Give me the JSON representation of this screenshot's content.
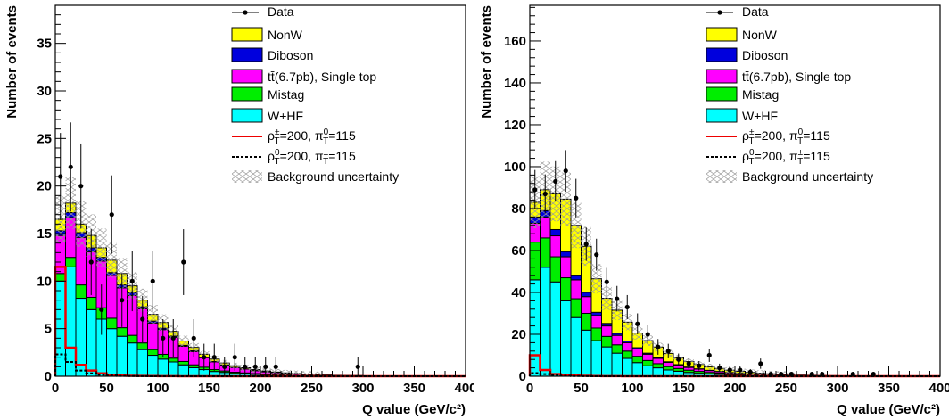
{
  "chart_data": [
    {
      "type": "stacked-histogram",
      "xlabel": "Q value (GeV/c²)",
      "ylabel": "Number of events",
      "xlim": [
        0,
        400
      ],
      "ylim": [
        0,
        39
      ],
      "x_ticks": [
        "0",
        "50",
        "100",
        "150",
        "200",
        "250",
        "300",
        "350",
        "400"
      ],
      "y_ticks": [
        "0",
        "5",
        "10",
        "15",
        "20",
        "25",
        "30",
        "35"
      ],
      "y_tick_values": [
        0,
        5,
        10,
        15,
        20,
        25,
        30,
        35
      ],
      "bin_width": 10,
      "legend_position": "top-right",
      "series": [
        {
          "name": "W+HF",
          "color": "#00ffff",
          "values": [
            10,
            11.5,
            8.2,
            7.0,
            6.0,
            5.0,
            4.2,
            3.5,
            2.8,
            2.2,
            1.8,
            1.5,
            1.2,
            0.9,
            0.7,
            0.5,
            0.4,
            0.3,
            0.25,
            0.2,
            0.15,
            0.12,
            0.1,
            0.08,
            0.06,
            0.05,
            0.04,
            0.03,
            0.02,
            0.02,
            0.02,
            0.01,
            0.01,
            0.01,
            0.01,
            0.01,
            0.01,
            0.01,
            0.01,
            0.01
          ]
        },
        {
          "name": "Mistag",
          "color": "#00ee00",
          "values": [
            0.8,
            1.0,
            1.4,
            1.3,
            1.2,
            1.1,
            0.9,
            0.8,
            0.7,
            0.6,
            0.5,
            0.4,
            0.35,
            0.3,
            0.25,
            0.2,
            0.15,
            0.12,
            0.1,
            0.08,
            0.06,
            0.05,
            0.04,
            0.03,
            0.02,
            0.02,
            0.01,
            0.01,
            0.01,
            0.01,
            0.01,
            0.01,
            0,
            0,
            0,
            0,
            0,
            0,
            0,
            0
          ]
        },
        {
          "name": "tt̄(6.7pb), Single top",
          "color": "#ff00ff",
          "values": [
            4.0,
            4.2,
            5.0,
            4.8,
            4.9,
            4.5,
            4.2,
            4.2,
            3.6,
            2.8,
            2.6,
            2.2,
            1.6,
            1.4,
            1.0,
            0.8,
            0.6,
            0.5,
            0.4,
            0.3,
            0.25,
            0.2,
            0.15,
            0.12,
            0.1,
            0.08,
            0.06,
            0.05,
            0.04,
            0.03,
            0.02,
            0.02,
            0.01,
            0.01,
            0.01,
            0.01,
            0,
            0,
            0,
            0
          ]
        },
        {
          "name": "Diboson",
          "color": "#0000dd",
          "values": [
            0.5,
            0.5,
            0.5,
            0.4,
            0.4,
            0.3,
            0.3,
            0.3,
            0.2,
            0.2,
            0.15,
            0.12,
            0.1,
            0.08,
            0.06,
            0.05,
            0.04,
            0.03,
            0.02,
            0.02,
            0.01,
            0.01,
            0.01,
            0.01,
            0,
            0,
            0,
            0,
            0,
            0,
            0,
            0,
            0,
            0,
            0,
            0,
            0,
            0,
            0,
            0
          ]
        },
        {
          "name": "NonW",
          "color": "#ffff00",
          "values": [
            1.2,
            1.0,
            0.9,
            1.3,
            1.0,
            1.3,
            1.2,
            0.7,
            0.7,
            0.7,
            0.6,
            0.5,
            0.45,
            0.35,
            0.3,
            0.25,
            0.2,
            0.15,
            0.12,
            0.1,
            0.08,
            0.06,
            0.05,
            0.04,
            0.03,
            0.02,
            0.02,
            0.01,
            0.01,
            0.01,
            0,
            0,
            0,
            0,
            0,
            0,
            0,
            0,
            0,
            0
          ]
        }
      ],
      "data": {
        "name": "Data",
        "x": [
          5,
          15,
          25,
          35,
          45,
          55,
          65,
          75,
          85,
          95,
          105,
          115,
          125,
          135,
          145,
          155,
          165,
          175,
          185,
          195,
          205,
          215,
          295
        ],
        "y": [
          21,
          22,
          20,
          12,
          7,
          17,
          8,
          10,
          6,
          10,
          4,
          4,
          12,
          4,
          2,
          2,
          1,
          2,
          1,
          1,
          1,
          1,
          1
        ]
      },
      "signals": [
        {
          "name": "ρ±T=200, π0T=115",
          "style": "solid",
          "color": "#ee0000",
          "values": [
            11.5,
            3.0,
            1.2,
            0.6,
            0.3,
            0.15,
            0.08,
            0.05,
            0.03,
            0.02,
            0.01,
            0.01,
            0,
            0,
            0,
            0,
            0,
            0,
            0,
            0,
            0,
            0,
            0,
            0,
            0,
            0,
            0,
            0,
            0,
            0,
            0,
            0,
            0,
            0,
            0,
            0,
            0,
            0,
            0,
            0
          ]
        },
        {
          "name": "ρ0T=200, π±T=115",
          "style": "dotted",
          "color": "#000000",
          "values": [
            2.3,
            1.5,
            0.6,
            0.3,
            0.15,
            0.08,
            0.04,
            0.02,
            0.01,
            0,
            0,
            0,
            0,
            0,
            0,
            0,
            0,
            0,
            0,
            0,
            0,
            0,
            0,
            0,
            0,
            0,
            0,
            0,
            0,
            0,
            0,
            0,
            0,
            0,
            0,
            0,
            0,
            0,
            0,
            0
          ]
        }
      ],
      "uncertainty_label": "Background uncertainty"
    },
    {
      "type": "stacked-histogram",
      "xlabel": "Q value (GeV/c²)",
      "ylabel": "Number of events",
      "xlim": [
        0,
        400
      ],
      "ylim": [
        0,
        177
      ],
      "x_ticks": [
        "0",
        "50",
        "100",
        "150",
        "200",
        "250",
        "300",
        "350",
        "400"
      ],
      "y_ticks": [
        "0",
        "20",
        "40",
        "60",
        "80",
        "100",
        "120",
        "140",
        "160"
      ],
      "y_tick_values": [
        0,
        20,
        40,
        60,
        80,
        100,
        120,
        140,
        160
      ],
      "bin_width": 10,
      "legend_position": "top-right",
      "series": [
        {
          "name": "W+HF",
          "color": "#00ffff",
          "values": [
            46,
            52,
            45,
            36,
            28,
            22,
            17,
            14,
            11,
            8.5,
            6.5,
            5.0,
            4.0,
            3.0,
            2.4,
            1.8,
            1.4,
            1.1,
            0.9,
            0.7,
            0.55,
            0.45,
            0.35,
            0.28,
            0.22,
            0.18,
            0.14,
            0.11,
            0.09,
            0.07,
            0.06,
            0.05,
            0.04,
            0.03,
            0.03,
            0.02,
            0.02,
            0.02,
            0.01,
            0.01
          ]
        },
        {
          "name": "Mistag",
          "color": "#00ee00",
          "values": [
            18,
            14,
            12,
            11,
            9,
            8,
            6,
            5,
            4,
            3.5,
            3.0,
            2.5,
            2.0,
            1.6,
            1.3,
            1.1,
            0.9,
            0.7,
            0.6,
            0.5,
            0.4,
            0.3,
            0.25,
            0.2,
            0.15,
            0.12,
            0.1,
            0.08,
            0.06,
            0.05,
            0.04,
            0.03,
            0.03,
            0.02,
            0.02,
            0.01,
            0.01,
            0.01,
            0.01,
            0.01
          ]
        },
        {
          "name": "tt̄(6.7pb), Single top",
          "color": "#ff00ff",
          "values": [
            9,
            10,
            10,
            10,
            9,
            8,
            6,
            5,
            4.5,
            4,
            3.5,
            3.0,
            2.5,
            2.0,
            1.6,
            1.3,
            1.1,
            0.9,
            0.7,
            0.5,
            0.4,
            0.3,
            0.25,
            0.2,
            0.15,
            0.12,
            0.1,
            0.08,
            0.06,
            0.05,
            0.04,
            0.03,
            0.02,
            0.02,
            0.01,
            0.01,
            0.01,
            0.01,
            0,
            0
          ]
        },
        {
          "name": "Diboson",
          "color": "#0000dd",
          "values": [
            3,
            3,
            3,
            2.5,
            2,
            2,
            1.5,
            1.2,
            1.0,
            0.8,
            0.6,
            0.5,
            0.4,
            0.3,
            0.25,
            0.2,
            0.15,
            0.12,
            0.1,
            0.08,
            0.06,
            0.05,
            0.04,
            0.03,
            0.02,
            0.02,
            0.01,
            0.01,
            0.01,
            0.01,
            0,
            0,
            0,
            0,
            0,
            0,
            0,
            0,
            0,
            0
          ]
        },
        {
          "name": "NonW",
          "color": "#ffff00",
          "values": [
            7,
            10,
            17,
            25,
            24,
            22,
            16,
            12,
            11,
            9,
            7,
            6,
            5,
            4,
            3.2,
            2.6,
            2.1,
            1.7,
            1.4,
            1.1,
            0.9,
            0.7,
            0.55,
            0.45,
            0.35,
            0.28,
            0.22,
            0.18,
            0.14,
            0.11,
            0.09,
            0.07,
            0.05,
            0.04,
            0.03,
            0.03,
            0.02,
            0.02,
            0.01,
            0.01
          ]
        }
      ],
      "data": {
        "name": "Data",
        "x": [
          5,
          15,
          25,
          35,
          45,
          55,
          65,
          75,
          85,
          95,
          105,
          115,
          125,
          135,
          145,
          155,
          165,
          175,
          185,
          195,
          205,
          215,
          225,
          235,
          245,
          255,
          265,
          275,
          285,
          295,
          305,
          315,
          325,
          335,
          345,
          355,
          365,
          375,
          385,
          395
        ],
        "y": [
          89,
          87,
          93,
          98,
          85,
          63,
          58,
          45,
          37,
          33,
          25,
          20,
          14,
          12,
          8,
          6,
          5,
          10,
          4,
          3,
          3,
          2,
          6,
          1,
          1,
          1,
          0,
          1,
          1,
          0,
          0,
          1,
          0,
          1,
          0,
          0,
          0,
          0,
          0,
          0
        ]
      },
      "signals": [
        {
          "name": "ρ±T=200, π0T=115",
          "style": "solid",
          "color": "#ee0000",
          "values": [
            10,
            3,
            1.0,
            0.5,
            0.3,
            0.2,
            0.1,
            0.05,
            0.03,
            0.02,
            0.01,
            0,
            0,
            0,
            0,
            0,
            0,
            0,
            0,
            0,
            0,
            0,
            0,
            0,
            0,
            0,
            0,
            0,
            0,
            0,
            0,
            0,
            0,
            0,
            0,
            0,
            0,
            0,
            0,
            0
          ]
        },
        {
          "name": "ρ0T=200, π±T=115",
          "style": "dotted",
          "color": "#000000",
          "values": [
            1.5,
            1.0,
            0.5,
            0.2,
            0.1,
            0.05,
            0.02,
            0.01,
            0,
            0,
            0,
            0,
            0,
            0,
            0,
            0,
            0,
            0,
            0,
            0,
            0,
            0,
            0,
            0,
            0,
            0,
            0,
            0,
            0,
            0,
            0,
            0,
            0,
            0,
            0,
            0,
            0,
            0,
            0,
            0
          ]
        }
      ],
      "uncertainty_label": "Background uncertainty"
    }
  ],
  "legend": {
    "data": "Data",
    "nonw": "NonW",
    "diboson": "Diboson",
    "ttbar_main": "tt̄(6.7pb), Single top",
    "mistag": "Mistag",
    "whf": "W+HF",
    "sig1_a": "ρ",
    "sig1_a_sup": "±",
    "sig1_a_sub": "T",
    "sig1_b": "=200, π",
    "sig1_b_sup": "0",
    "sig1_b_sub": "T",
    "sig1_c": "=115",
    "sig2_a": "ρ",
    "sig2_a_sup": "0",
    "sig2_a_sub": "T",
    "sig2_b": "=200, π",
    "sig2_b_sup": "±",
    "sig2_b_sub": "T",
    "sig2_c": "=115",
    "uncertainty": "Background uncertainty"
  },
  "colors": {
    "whf": "#00ffff",
    "mistag": "#00ee00",
    "ttbar": "#ff00ff",
    "diboson": "#0000dd",
    "nonw": "#ffff00",
    "signal_red": "#ee0000",
    "frame": "#000000"
  }
}
